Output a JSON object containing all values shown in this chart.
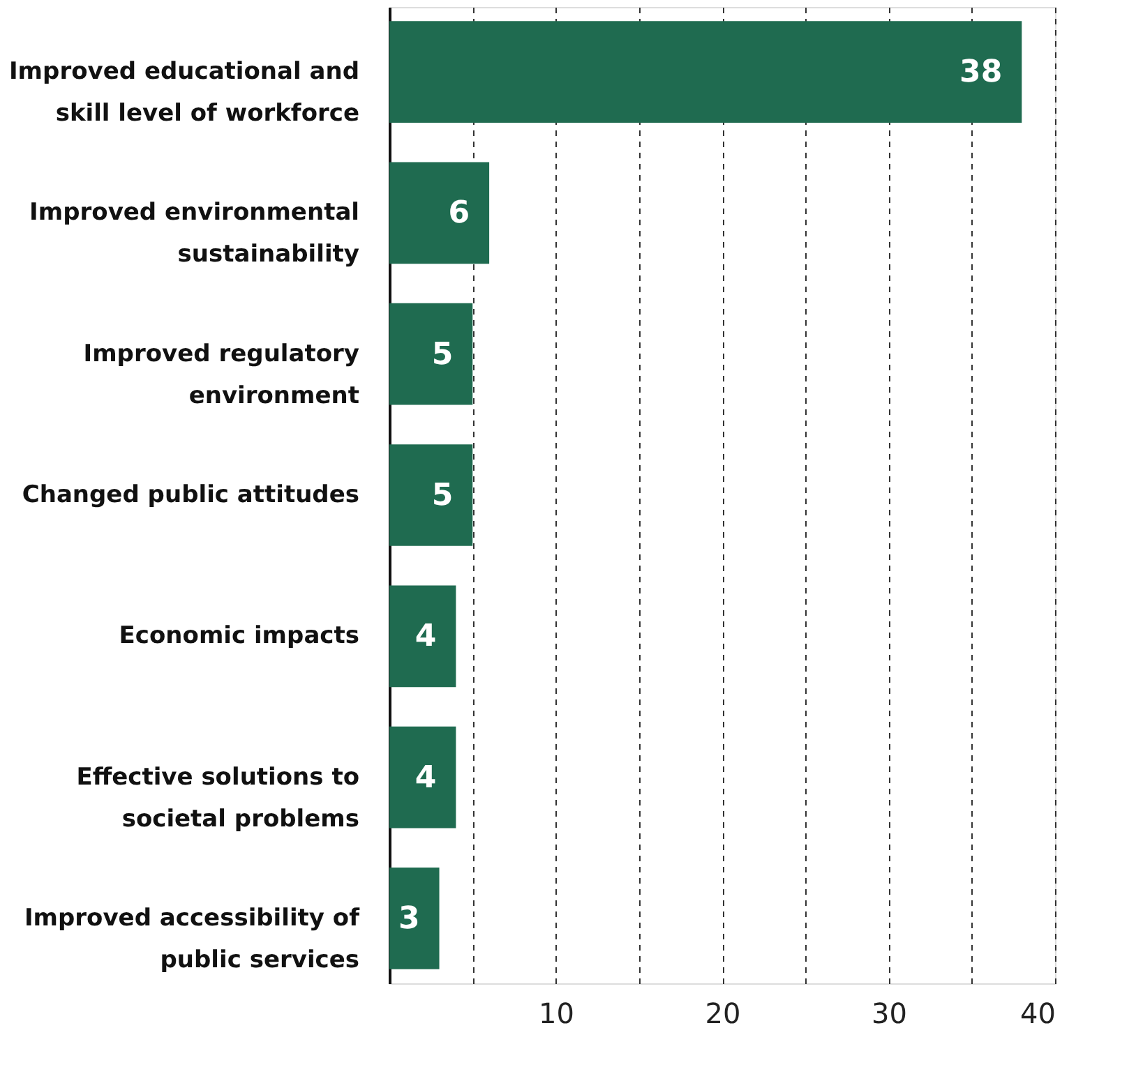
{
  "chart_data": {
    "type": "bar",
    "orientation": "horizontal",
    "categories": [
      "Improved educational and skill level of workforce",
      "Improved environmental sustainability",
      "Improved regulatory environment",
      "Changed public attitudes",
      "Economic impacts",
      "Effective solutions to societal problems",
      "Improved accessibility of public services"
    ],
    "values": [
      38,
      6,
      5,
      5,
      4,
      4,
      3
    ],
    "color": "#1f6b50",
    "data_labels": true,
    "xlim": [
      0,
      40
    ],
    "xticks": [
      {
        "value": 5,
        "label": null
      },
      10,
      {
        "value": 15,
        "label": null
      },
      20,
      {
        "value": 25,
        "label": null
      },
      30,
      {
        "value": 35,
        "label": null
      },
      40
    ],
    "grid": "x"
  }
}
